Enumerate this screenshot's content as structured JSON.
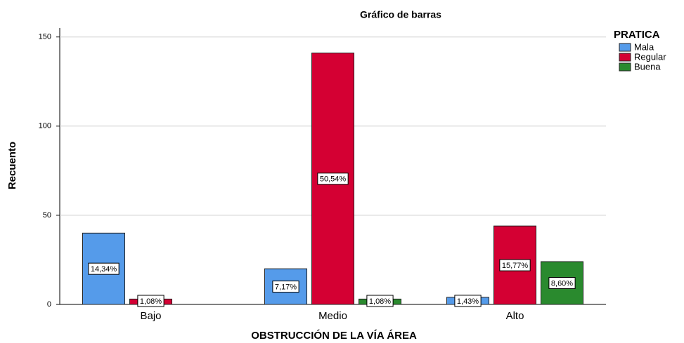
{
  "chart_data": {
    "type": "bar",
    "title": "Gráfico de barras",
    "x_label": "OBSTRUCCIÓN DE LA VÍA ÁREA",
    "y_label": "Recuento",
    "legend_title": "PRATICA",
    "legend": "right",
    "grid": true,
    "categories": [
      "Bajo",
      "Medio",
      "Alto"
    ],
    "series": [
      {
        "name": "Mala",
        "color": "#559bea",
        "values": [
          40,
          20,
          4
        ],
        "value_labels": [
          "14,34%",
          "7,17%",
          "1,43%"
        ]
      },
      {
        "name": "Regular",
        "color": "#d40033",
        "values": [
          3,
          141,
          44
        ],
        "value_labels": [
          "1,08%",
          "50,54%",
          "15,77%"
        ]
      },
      {
        "name": "Buena",
        "color": "#2a8a2e",
        "values": [
          null,
          3,
          24
        ],
        "value_labels": [
          null,
          "1,08%",
          "8,60%"
        ]
      }
    ],
    "ylim": [
      0,
      155
    ],
    "yticks": [
      0,
      50,
      100,
      150
    ]
  }
}
